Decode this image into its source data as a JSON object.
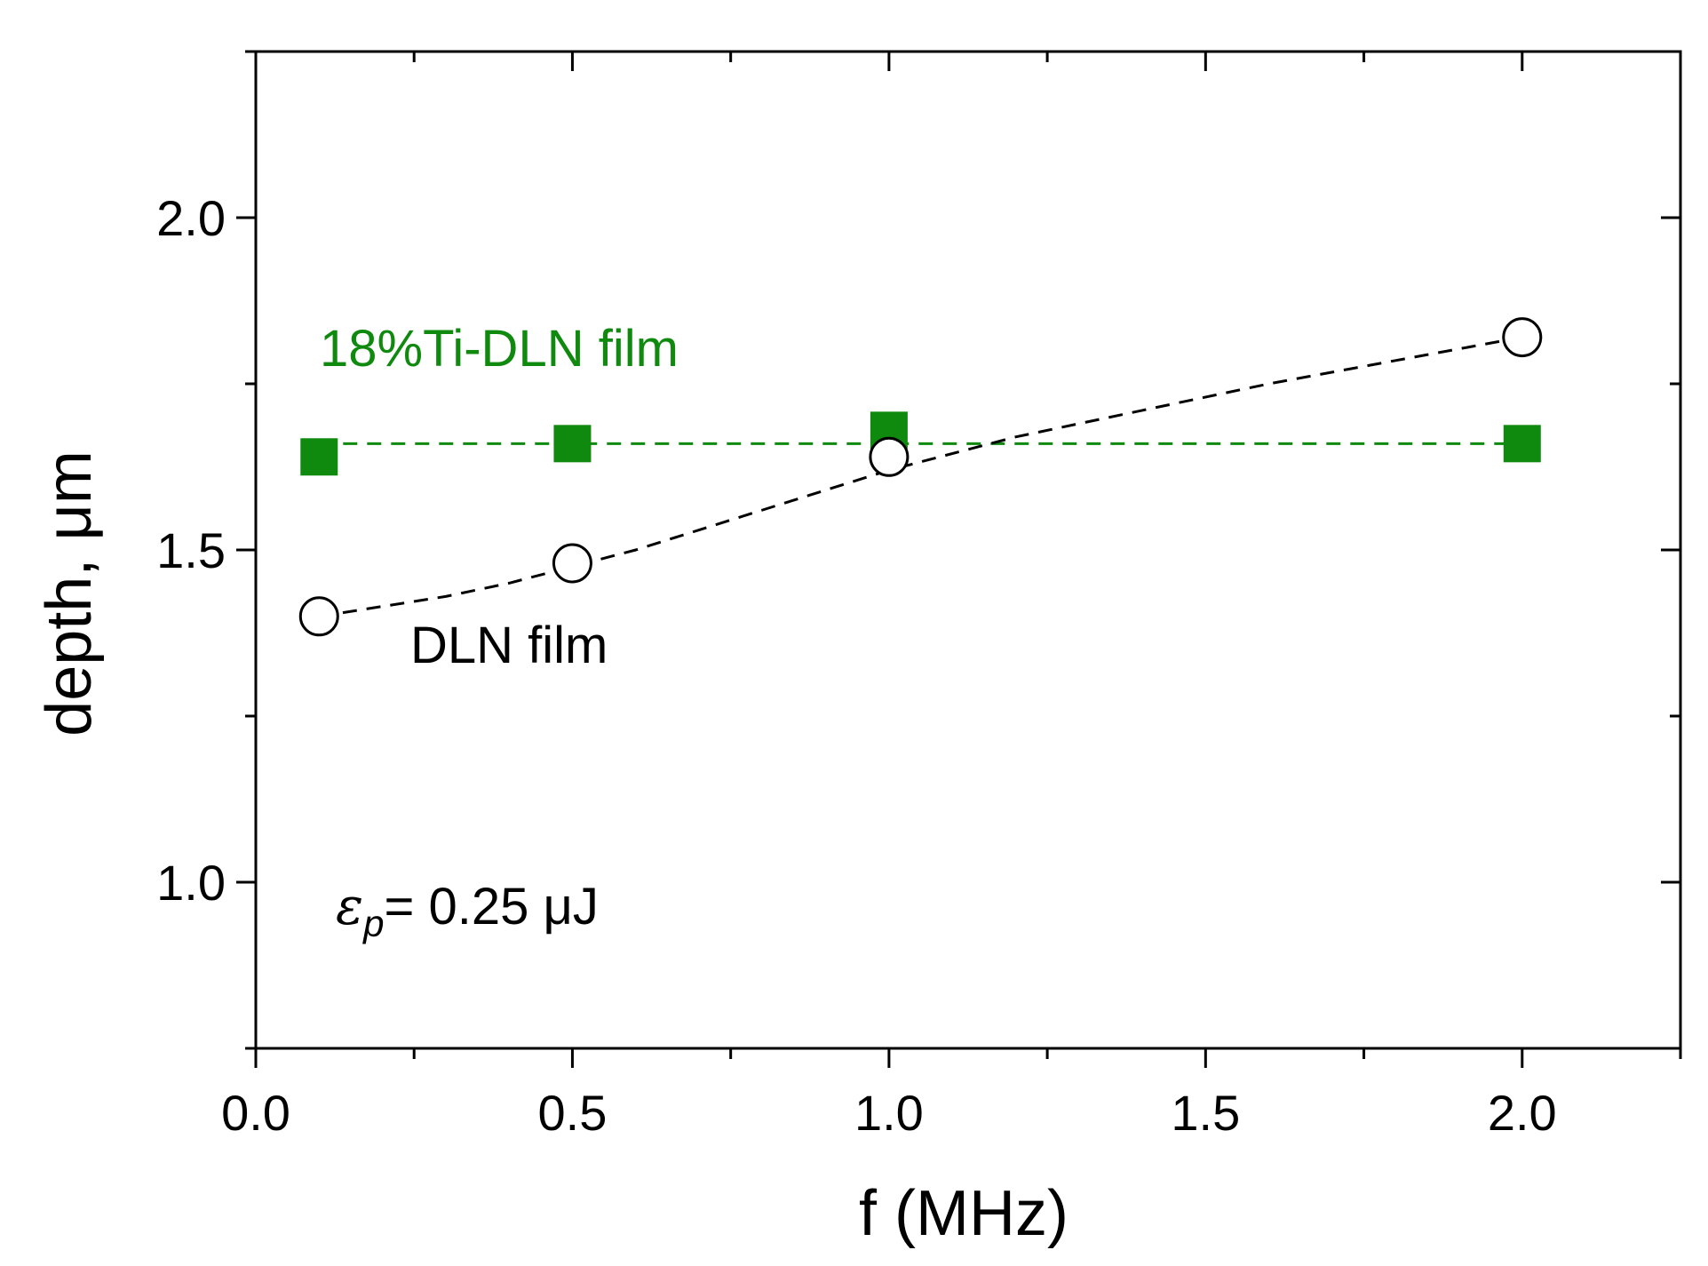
{
  "chart_data": {
    "type": "scatter",
    "xlabel": "f (MHz)",
    "ylabel": "depth, μm",
    "xlim": [
      0.0,
      2.25
    ],
    "ylim": [
      0.75,
      2.25
    ],
    "x_major_ticks": [
      0.0,
      0.5,
      1.0,
      1.5,
      2.0
    ],
    "x_minor_ticks": [
      0.25,
      0.75,
      1.25,
      1.75,
      2.25
    ],
    "x_tick_labels": [
      "0.0",
      "0.5",
      "1.0",
      "1.5",
      "2.0"
    ],
    "y_major_ticks": [
      1.0,
      1.5,
      2.0
    ],
    "y_minor_ticks": [
      0.75,
      1.25,
      1.75,
      2.25
    ],
    "y_tick_labels": [
      "1.0",
      "1.5",
      "2.0"
    ],
    "grid": false,
    "legend": "none",
    "series": [
      {
        "name": "18%Ti-DLN film",
        "x": [
          0.1,
          0.5,
          1.0,
          2.0
        ],
        "y": [
          1.64,
          1.66,
          1.68,
          1.66
        ],
        "marker": "filled-square",
        "color": "#0f8a0f",
        "fit_line": {
          "style": "dashed",
          "x": [
            0.1,
            2.0
          ],
          "y": [
            1.66,
            1.66
          ]
        }
      },
      {
        "name": "DLN film",
        "x": [
          0.1,
          0.5,
          1.0,
          2.0
        ],
        "y": [
          1.4,
          1.48,
          1.64,
          1.82
        ],
        "marker": "open-circle",
        "color": "#000000",
        "fit_line": {
          "style": "dashed",
          "x": [
            0.1,
            0.2,
            0.3,
            0.4,
            0.5,
            0.6,
            0.7,
            0.8,
            0.9,
            1.0,
            1.2,
            1.4,
            1.6,
            1.8,
            2.0
          ],
          "y": [
            1.4,
            1.415,
            1.43,
            1.45,
            1.475,
            1.5,
            1.53,
            1.56,
            1.59,
            1.62,
            1.67,
            1.71,
            1.75,
            1.785,
            1.82
          ]
        }
      }
    ],
    "annotations": {
      "ti_film_label": "18%Ti-DLN film",
      "dln_film_label": "DLN film",
      "energy_symbol": "ε",
      "energy_subscript": "p",
      "energy_value": "= 0.25 μJ"
    }
  }
}
